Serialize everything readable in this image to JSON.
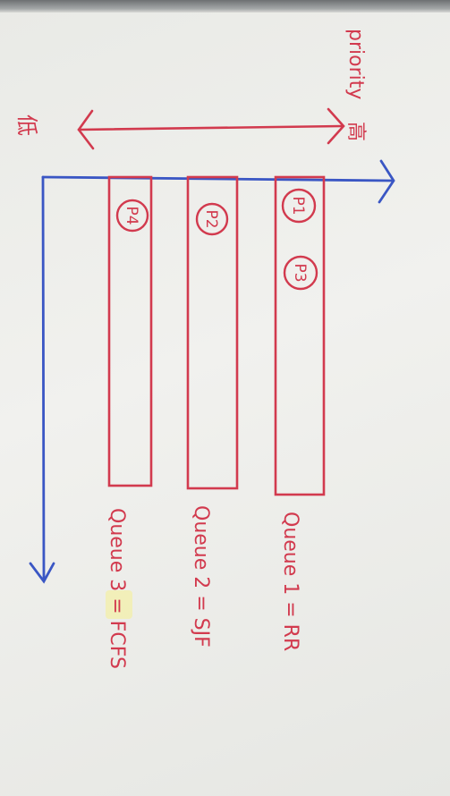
{
  "axis": {
    "priority_label": "priority",
    "high_label": "高",
    "low_label": "低",
    "colors": {
      "axis": "#3a56c4",
      "ink": "#d23a4e"
    }
  },
  "queues": [
    {
      "processes": [
        "P1",
        "P3"
      ],
      "label": "Queue 1 = RR"
    },
    {
      "processes": [
        "P2"
      ],
      "label": "Queue 2 = SJF"
    },
    {
      "processes": [
        "P4"
      ],
      "label": "Queue 3 = FCFS"
    }
  ]
}
